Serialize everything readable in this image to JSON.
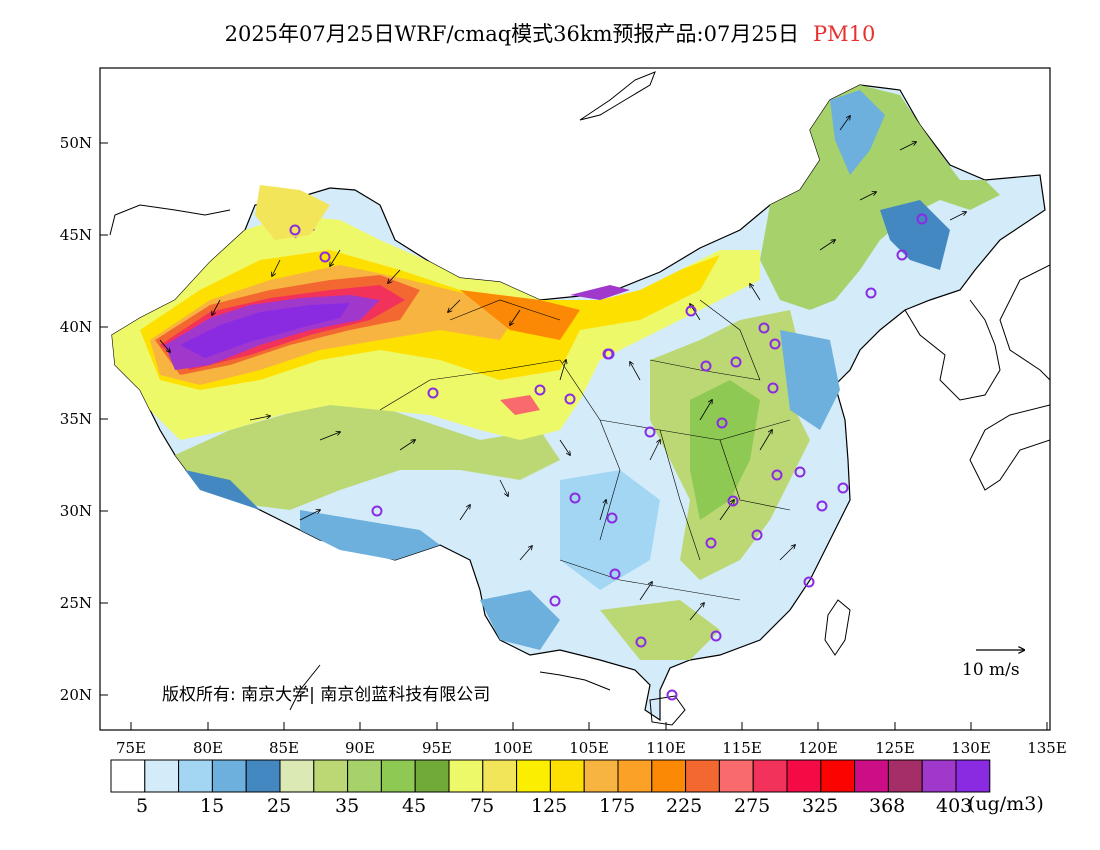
{
  "title": {
    "prefix": "2025年07月25日WRF/cmaq模式36km预报产品:07月25日",
    "pollutant": "PM10"
  },
  "axes": {
    "lon_labels": [
      "75E",
      "80E",
      "85E",
      "90E",
      "95E",
      "100E",
      "105E",
      "110E",
      "115E",
      "120E",
      "125E",
      "130E",
      "135E"
    ],
    "lat_labels": [
      "50N",
      "45N",
      "40N",
      "35N",
      "30N",
      "25N",
      "20N"
    ]
  },
  "copyright": "版权所有: 南京大学| 南京创蓝科技有限公司",
  "wind_scale": "10 m/s",
  "legend": {
    "colors": [
      "#ffffff",
      "#d4ecfa",
      "#a3d6f3",
      "#6db0de",
      "#4488c2",
      "#dbe9b4",
      "#bcd875",
      "#a6d16b",
      "#8ec954",
      "#72aa3a",
      "#eef96a",
      "#f2e55a",
      "#fcee00",
      "#fde000",
      "#f8b440",
      "#fba226",
      "#fb8905",
      "#f36831",
      "#f86a6c",
      "#f2325a",
      "#f40b46",
      "#fa0300",
      "#cc0e86",
      "#a62e68",
      "#a138cc",
      "#8a2be2"
    ],
    "labels": [
      "5",
      "15",
      "25",
      "35",
      "45",
      "75",
      "125",
      "175",
      "225",
      "275",
      "325",
      "368",
      "403"
    ],
    "unit": "(ug/m3)"
  },
  "stations": 34
}
